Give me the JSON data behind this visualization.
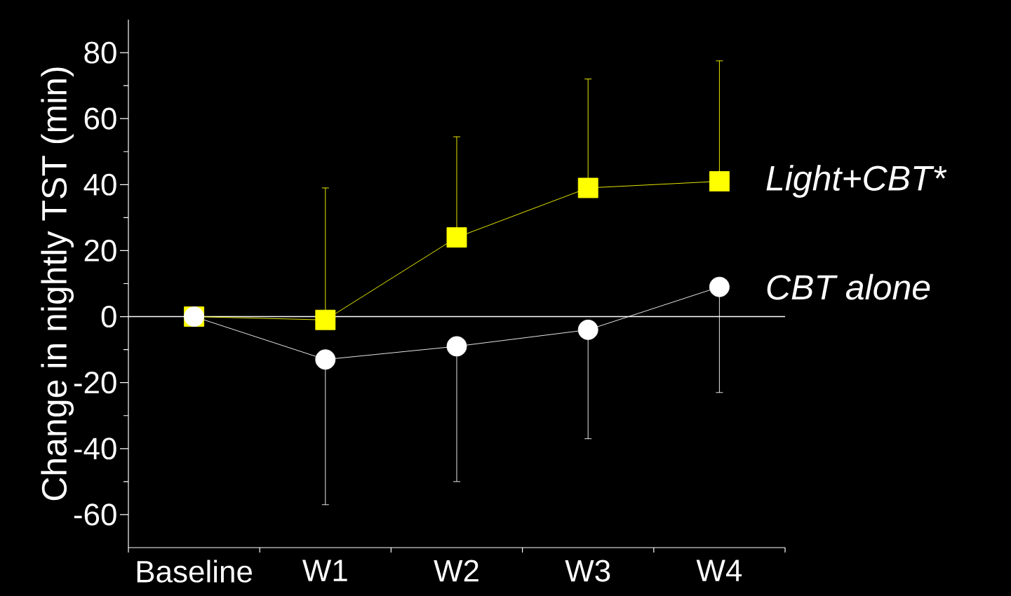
{
  "chart_data": {
    "type": "line",
    "ylabel": "Change in nightly TST (min)",
    "categories": [
      "Baseline",
      "W1",
      "W2",
      "W3",
      "W4"
    ],
    "series": [
      {
        "name": "Light+CBT*",
        "color": "#ffff00",
        "marker": "square",
        "values": [
          0,
          -1,
          24,
          39,
          41
        ],
        "errors": [
          null,
          [
            -1,
            39
          ],
          [
            24,
            54.5
          ],
          [
            39,
            72
          ],
          [
            41,
            77.5
          ]
        ]
      },
      {
        "name": "CBT alone",
        "color": "#ffffff",
        "marker": "circle",
        "values": [
          0,
          -13,
          -9,
          -4,
          9
        ],
        "errors": [
          null,
          [
            -57,
            -13
          ],
          [
            -50,
            -9
          ],
          [
            -37,
            -4
          ],
          [
            -23,
            9
          ]
        ]
      }
    ],
    "ylim": [
      -70,
      90
    ],
    "yticks": [
      -60,
      -40,
      -20,
      0,
      20,
      40,
      60,
      80
    ],
    "ref_lines": [
      {
        "axis": "y",
        "value": 0,
        "color": "#ffffff"
      }
    ],
    "grid": false,
    "legend": "right"
  }
}
